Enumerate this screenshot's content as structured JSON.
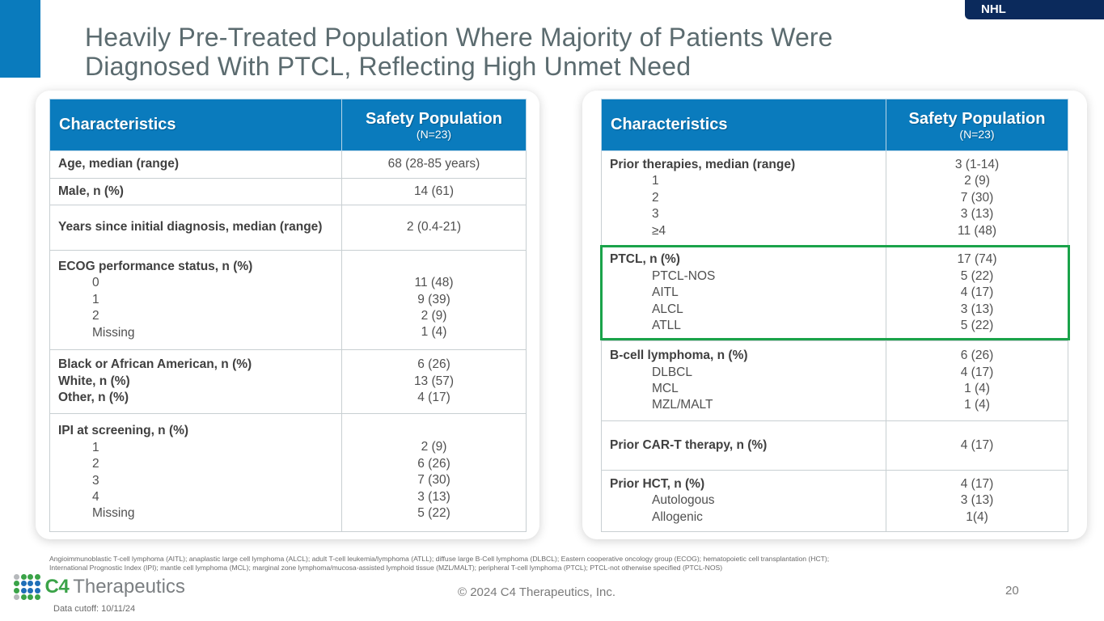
{
  "header": {
    "tag": "NHL",
    "title_line1": "Heavily Pre-Treated Population Where Majority of Patients Were",
    "title_line2": "Diagnosed With PTCL, Reflecting High Unmet Need"
  },
  "left_table": {
    "col1": "Characteristics",
    "col2": "Safety Population",
    "col2_sub": "(N=23)",
    "rows": [
      {
        "label": "Age, median (range)",
        "value": "68 (28-85 years)"
      },
      {
        "label": "Male, n (%)",
        "value": "14 (61)"
      },
      {
        "label": "Years since initial diagnosis, median (range)",
        "value": "2 (0.4-21)"
      },
      {
        "label": "ECOG performance status, n (%)",
        "subs": [
          "0",
          "1",
          "2",
          "Missing"
        ],
        "values": [
          "11 (48)",
          "9 (39)",
          "2 (9)",
          "1 (4)"
        ]
      },
      {
        "labels": [
          "Black or African American, n (%)",
          "White, n (%)",
          "Other, n (%)"
        ],
        "values": [
          "6 (26)",
          "13 (57)",
          "4 (17)"
        ]
      },
      {
        "label": "IPI at screening, n (%)",
        "subs": [
          "1",
          "2",
          "3",
          "4",
          "Missing"
        ],
        "values": [
          "2 (9)",
          "6 (26)",
          "7 (30)",
          "3 (13)",
          "5 (22)"
        ]
      }
    ]
  },
  "right_table": {
    "col1": "Characteristics",
    "col2": "Safety Population",
    "col2_sub": "(N=23)",
    "rows": [
      {
        "label": "Prior therapies, median (range)",
        "subs": [
          "1",
          "2",
          "3",
          "≥4"
        ],
        "values": [
          "3 (1-14)",
          "2 (9)",
          "7 (30)",
          "3 (13)",
          "11 (48)"
        ]
      },
      {
        "label": "PTCL, n (%)",
        "subs": [
          "PTCL-NOS",
          "AITL",
          "ALCL",
          "ATLL"
        ],
        "values": [
          "17 (74)",
          "5 (22)",
          "4 (17)",
          "3 (13)",
          "5 (22)"
        ],
        "highlighted": true
      },
      {
        "label": "B-cell lymphoma, n (%)",
        "subs": [
          "DLBCL",
          "MCL",
          "MZL/MALT"
        ],
        "values": [
          "6 (26)",
          "4 (17)",
          "1 (4)",
          "1 (4)"
        ]
      },
      {
        "label": "Prior CAR-T therapy, n (%)",
        "value": "4 (17)"
      },
      {
        "label": "Prior HCT, n (%)",
        "subs": [
          "Autologous",
          "Allogenic"
        ],
        "values": [
          "4 (17)",
          "3 (13)",
          "1(4)"
        ]
      }
    ]
  },
  "footnote": {
    "line1": "Angioimmunoblastic T-cell lymphoma (AITL); anaplastic large cell lymphoma (ALCL); adult T-cell leukemia/lymphoma (ATLL); diffuse large B-Cell lymphoma (DLBCL); Eastern cooperative oncology group (ECOG); hematopoietic cell transplantation (HCT);",
    "line2": "International Prognostic Index (IPI); mantle cell lymphoma (MCL); marginal zone lymphoma/mucosa-assisted lymphoid tissue (MZL/MALT); peripheral T-cell lymphoma (PTCL); PTCL-not otherwise specified (PTCL-NOS)"
  },
  "footer": {
    "logo_c4": "C4",
    "logo_name": "Therapeutics",
    "data_cutoff": "Data cutoff: 10/11/24",
    "copyright": "© 2024 C4 Therapeutics, Inc.",
    "page_number": "20"
  },
  "colors": {
    "accent_blue": "#0a7bbd",
    "tag_navy": "#0b2a5c",
    "highlight_green": "#1aa34a",
    "logo_green": "#3aa348",
    "logo_blue": "#1f6fb8",
    "logo_gray": "#b5b8bb"
  },
  "logo_dots": [
    "gray",
    "green",
    "green",
    "green",
    "green",
    "blue",
    "blue",
    "blue",
    "green",
    "blue",
    "blue",
    "blue",
    "gray",
    "green",
    "green",
    "green"
  ]
}
